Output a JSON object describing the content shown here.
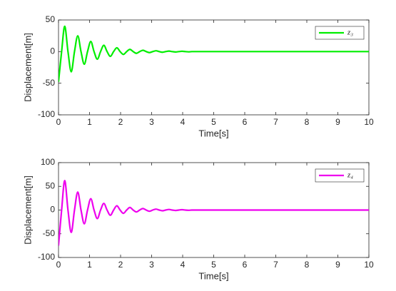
{
  "chart_data": [
    {
      "type": "line",
      "xlabel": "Time[s]",
      "ylabel": "Displacement[m]",
      "xlim": [
        0,
        10
      ],
      "xticks": [
        0,
        1,
        2,
        3,
        4,
        5,
        6,
        7,
        8,
        9,
        10
      ],
      "ylim": [
        -100,
        50
      ],
      "yticks": [
        -100,
        -50,
        0,
        50
      ],
      "legend": "northeast",
      "x": [
        0,
        0.1,
        0.2,
        0.305,
        0.41,
        0.515,
        0.62,
        0.725,
        0.83,
        0.935,
        1.04,
        1.145,
        1.25,
        1.355,
        1.46,
        1.565,
        1.67,
        1.775,
        1.88,
        1.985,
        2.09,
        2.195,
        2.3,
        2.405,
        2.51,
        2.615,
        2.72,
        2.825,
        2.93,
        3.035,
        3.14,
        3.245,
        3.35,
        3.455,
        3.56,
        3.665,
        3.77,
        3.875,
        3.98,
        4.085,
        4.19,
        4.295,
        4.5,
        5,
        6,
        7,
        8,
        9,
        10
      ],
      "series": [
        {
          "name": "z₃",
          "color": "#00ee00",
          "values": [
            -48,
            0,
            40,
            0,
            -32,
            0,
            25,
            0,
            -20,
            0,
            16,
            0,
            -12,
            0,
            10,
            0,
            -7.5,
            0,
            6,
            0,
            -4.5,
            0,
            3.5,
            0,
            -2.7,
            0,
            2.1,
            0,
            -1.6,
            0,
            1.3,
            0,
            -1,
            0,
            0.8,
            0,
            -0.6,
            0,
            0.5,
            0,
            -0.4,
            0,
            0,
            0,
            0,
            0,
            0,
            0,
            0
          ]
        }
      ]
    },
    {
      "type": "line",
      "xlabel": "Time[s]",
      "ylabel": "Displacement[m]",
      "xlim": [
        0,
        10
      ],
      "xticks": [
        0,
        1,
        2,
        3,
        4,
        5,
        6,
        7,
        8,
        9,
        10
      ],
      "ylim": [
        -100,
        100
      ],
      "yticks": [
        -100,
        -50,
        0,
        50,
        100
      ],
      "legend": "northeast",
      "x": [
        0,
        0.1,
        0.2,
        0.305,
        0.41,
        0.515,
        0.62,
        0.725,
        0.83,
        0.935,
        1.04,
        1.145,
        1.25,
        1.355,
        1.46,
        1.565,
        1.67,
        1.775,
        1.88,
        1.985,
        2.09,
        2.195,
        2.3,
        2.405,
        2.51,
        2.615,
        2.72,
        2.825,
        2.93,
        3.035,
        3.14,
        3.245,
        3.35,
        3.455,
        3.56,
        3.665,
        3.77,
        3.875,
        3.98,
        4.085,
        4.19,
        4.295,
        4.5,
        5,
        6,
        7,
        8,
        9,
        10
      ],
      "series": [
        {
          "name": "z₄",
          "color": "#ee00ee",
          "values": [
            -75,
            0,
            62,
            0,
            -47,
            0,
            38,
            0,
            -29,
            0,
            24,
            0,
            -18,
            0,
            14,
            0,
            -11,
            0,
            9,
            0,
            -7,
            0,
            5.5,
            0,
            -4,
            0,
            3.2,
            0,
            -2.5,
            0,
            2,
            0,
            -1.5,
            0,
            1.2,
            0,
            -0.9,
            0,
            0.7,
            0,
            -0.5,
            0,
            0,
            0,
            0,
            0,
            0,
            0,
            0
          ]
        }
      ]
    }
  ]
}
